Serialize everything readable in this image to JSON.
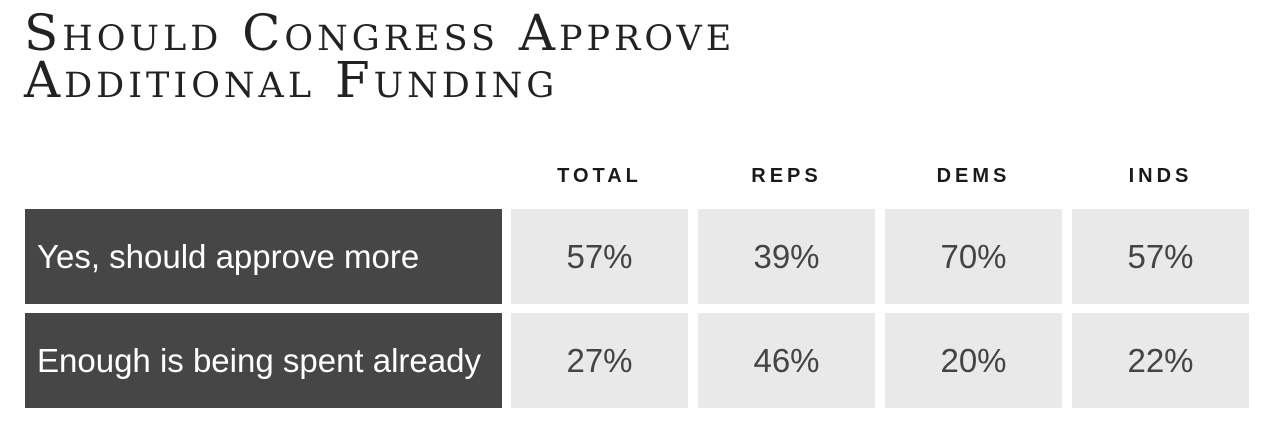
{
  "title": "Should Congress Approve Additional Funding",
  "chart_data": {
    "type": "table",
    "title": "Should Congress Approve Additional Funding",
    "columns": [
      "TOTAL",
      "REPS",
      "DEMS",
      "INDS"
    ],
    "rows": [
      {
        "label": "Yes, should approve more",
        "values": [
          "57%",
          "39%",
          "70%",
          "57%"
        ]
      },
      {
        "label": "Enough is being spent already",
        "values": [
          "27%",
          "46%",
          "20%",
          "22%"
        ]
      }
    ],
    "colors": {
      "label_background": "#464646",
      "cell_background": "#e9e9e9",
      "label_text": "#ffffff",
      "cell_text": "#444444"
    }
  }
}
